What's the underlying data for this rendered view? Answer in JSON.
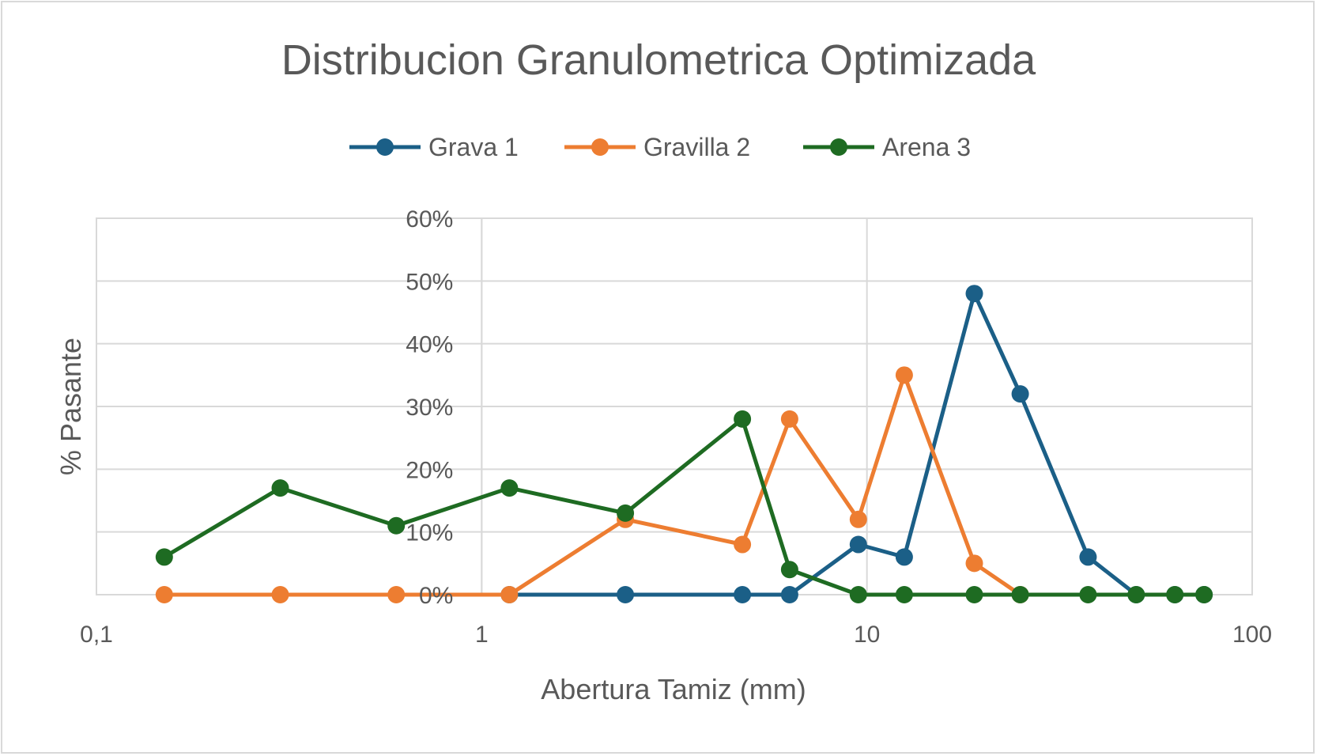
{
  "chart_data": {
    "type": "line",
    "title": "Distribucion Granulometrica Optimizada",
    "xlabel": "Abertura Tamiz (mm)",
    "ylabel": "% Pasante",
    "x_scale": "log",
    "xlim": [
      0.1,
      100
    ],
    "ylim": [
      0,
      0.6
    ],
    "x_tick_labels": [
      "0,1",
      "1",
      "10",
      "100"
    ],
    "x_tick_values": [
      0.1,
      1,
      10,
      100
    ],
    "y_tick_labels": [
      "0%",
      "10%",
      "20%",
      "30%",
      "40%",
      "50%",
      "60%"
    ],
    "y_tick_values": [
      0,
      0.1,
      0.2,
      0.3,
      0.4,
      0.5,
      0.6
    ],
    "grid": true,
    "legend_position": "top",
    "series": [
      {
        "name": "Grava 1",
        "color": "#1b5f87",
        "x": [
          1.18,
          2.36,
          4.75,
          6.3,
          9.5,
          12.5,
          19,
          25,
          37.5,
          50,
          63,
          75
        ],
        "y": [
          0,
          0,
          0,
          0,
          0.08,
          0.06,
          0.48,
          0.32,
          0.06,
          0,
          0,
          0
        ]
      },
      {
        "name": "Gravilla 2",
        "color": "#ed7d31",
        "x": [
          0.15,
          0.3,
          0.6,
          1.18,
          2.36,
          4.75,
          6.3,
          9.5,
          12.5,
          19,
          25
        ],
        "y": [
          0,
          0,
          0,
          0,
          0.12,
          0.08,
          0.28,
          0.12,
          0.35,
          0.05,
          0
        ]
      },
      {
        "name": "Arena 3",
        "color": "#1e6b22",
        "x": [
          0.15,
          0.3,
          0.6,
          1.18,
          2.36,
          4.75,
          6.3,
          9.5,
          12.5,
          19,
          25,
          37.5,
          50,
          63,
          75
        ],
        "y": [
          0.06,
          0.17,
          0.11,
          0.17,
          0.13,
          0.28,
          0.04,
          0,
          0,
          0,
          0,
          0,
          0,
          0,
          0
        ]
      }
    ]
  }
}
